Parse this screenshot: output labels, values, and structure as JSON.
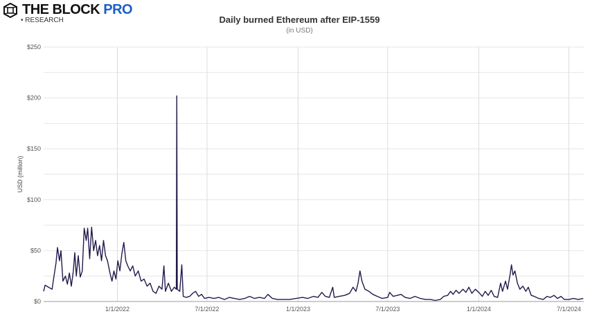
{
  "brand": {
    "name_main": "THE BLOCK",
    "name_accent": "PRO",
    "sub": "• RESEARCH",
    "accent_color": "#1a5fc8"
  },
  "chart_data": {
    "type": "line",
    "title": "Daily burned Ethereum after EIP-1559",
    "subtitle": "(in USD)",
    "xlabel": "",
    "ylabel": "USD (million)",
    "xlim": [
      "2021-08-05",
      "2024-07-31"
    ],
    "ylim": [
      0,
      250
    ],
    "y_ticks": [
      0,
      50,
      100,
      150,
      200,
      250
    ],
    "y_tick_labels": [
      "$0",
      "$50",
      "$100",
      "$150",
      "$200",
      "$250"
    ],
    "x_ticks": [
      "2022-01-01",
      "2022-07-01",
      "2023-01-01",
      "2023-07-01",
      "2024-01-01",
      "2024-07-01"
    ],
    "x_tick_labels": [
      "1/1/2022",
      "7/1/2022",
      "1/1/2023",
      "7/1/2023",
      "1/1/2024",
      "7/1/2024"
    ],
    "grid": true,
    "line_color": "#1f1a4a",
    "series": [
      {
        "points": [
          [
            "2021-08-05",
            10
          ],
          [
            "2021-08-08",
            16
          ],
          [
            "2021-08-15",
            14
          ],
          [
            "2021-08-22",
            12
          ],
          [
            "2021-08-26",
            25
          ],
          [
            "2021-08-30",
            38
          ],
          [
            "2021-09-02",
            53
          ],
          [
            "2021-09-06",
            40
          ],
          [
            "2021-09-09",
            50
          ],
          [
            "2021-09-13",
            20
          ],
          [
            "2021-09-18",
            25
          ],
          [
            "2021-09-22",
            17
          ],
          [
            "2021-09-26",
            28
          ],
          [
            "2021-09-30",
            15
          ],
          [
            "2021-10-04",
            30
          ],
          [
            "2021-10-07",
            48
          ],
          [
            "2021-10-10",
            25
          ],
          [
            "2021-10-14",
            45
          ],
          [
            "2021-10-18",
            24
          ],
          [
            "2021-10-22",
            30
          ],
          [
            "2021-10-26",
            72
          ],
          [
            "2021-10-30",
            60
          ],
          [
            "2021-11-02",
            72
          ],
          [
            "2021-11-06",
            42
          ],
          [
            "2021-11-10",
            73
          ],
          [
            "2021-11-14",
            50
          ],
          [
            "2021-11-18",
            60
          ],
          [
            "2021-11-22",
            45
          ],
          [
            "2021-11-26",
            55
          ],
          [
            "2021-11-30",
            40
          ],
          [
            "2021-12-04",
            60
          ],
          [
            "2021-12-08",
            45
          ],
          [
            "2021-12-12",
            40
          ],
          [
            "2021-12-17",
            28
          ],
          [
            "2021-12-21",
            20
          ],
          [
            "2021-12-25",
            30
          ],
          [
            "2021-12-29",
            22
          ],
          [
            "2022-01-02",
            40
          ],
          [
            "2022-01-06",
            30
          ],
          [
            "2022-01-10",
            47
          ],
          [
            "2022-01-14",
            58
          ],
          [
            "2022-01-18",
            40
          ],
          [
            "2022-01-22",
            35
          ],
          [
            "2022-01-27",
            30
          ],
          [
            "2022-02-01",
            35
          ],
          [
            "2022-02-06",
            25
          ],
          [
            "2022-02-12",
            30
          ],
          [
            "2022-02-18",
            20
          ],
          [
            "2022-02-24",
            22
          ],
          [
            "2022-03-02",
            15
          ],
          [
            "2022-03-08",
            18
          ],
          [
            "2022-03-14",
            10
          ],
          [
            "2022-03-20",
            8
          ],
          [
            "2022-03-26",
            15
          ],
          [
            "2022-04-01",
            12
          ],
          [
            "2022-04-05",
            35
          ],
          [
            "2022-04-08",
            10
          ],
          [
            "2022-04-14",
            18
          ],
          [
            "2022-04-20",
            10
          ],
          [
            "2022-04-26",
            14
          ],
          [
            "2022-04-30",
            12
          ],
          [
            "2022-05-01",
            202
          ],
          [
            "2022-05-02",
            12
          ],
          [
            "2022-05-07",
            10
          ],
          [
            "2022-05-11",
            36
          ],
          [
            "2022-05-14",
            5
          ],
          [
            "2022-05-20",
            4
          ],
          [
            "2022-05-27",
            5
          ],
          [
            "2022-06-02",
            8
          ],
          [
            "2022-06-08",
            10
          ],
          [
            "2022-06-14",
            5
          ],
          [
            "2022-06-20",
            7
          ],
          [
            "2022-06-26",
            3
          ],
          [
            "2022-07-05",
            4
          ],
          [
            "2022-07-15",
            3
          ],
          [
            "2022-07-25",
            4
          ],
          [
            "2022-08-05",
            2
          ],
          [
            "2022-08-15",
            4
          ],
          [
            "2022-08-25",
            3
          ],
          [
            "2022-09-05",
            2
          ],
          [
            "2022-09-15",
            3
          ],
          [
            "2022-09-25",
            5
          ],
          [
            "2022-10-05",
            3
          ],
          [
            "2022-10-15",
            4
          ],
          [
            "2022-10-25",
            3
          ],
          [
            "2022-11-01",
            7
          ],
          [
            "2022-11-10",
            3
          ],
          [
            "2022-11-20",
            2
          ],
          [
            "2022-12-01",
            2
          ],
          [
            "2022-12-15",
            2
          ],
          [
            "2022-12-28",
            3
          ],
          [
            "2023-01-10",
            4
          ],
          [
            "2023-01-20",
            3
          ],
          [
            "2023-02-01",
            5
          ],
          [
            "2023-02-10",
            4
          ],
          [
            "2023-02-18",
            9
          ],
          [
            "2023-02-25",
            5
          ],
          [
            "2023-03-05",
            4
          ],
          [
            "2023-03-12",
            14
          ],
          [
            "2023-03-15",
            4
          ],
          [
            "2023-03-25",
            5
          ],
          [
            "2023-04-05",
            6
          ],
          [
            "2023-04-15",
            8
          ],
          [
            "2023-04-22",
            14
          ],
          [
            "2023-04-28",
            10
          ],
          [
            "2023-05-02",
            18
          ],
          [
            "2023-05-06",
            30
          ],
          [
            "2023-05-10",
            20
          ],
          [
            "2023-05-16",
            12
          ],
          [
            "2023-05-24",
            10
          ],
          [
            "2023-06-01",
            7
          ],
          [
            "2023-06-10",
            5
          ],
          [
            "2023-06-20",
            3
          ],
          [
            "2023-07-01",
            4
          ],
          [
            "2023-07-05",
            9
          ],
          [
            "2023-07-12",
            5
          ],
          [
            "2023-07-20",
            6
          ],
          [
            "2023-07-28",
            7
          ],
          [
            "2023-08-05",
            4
          ],
          [
            "2023-08-15",
            3
          ],
          [
            "2023-08-25",
            5
          ],
          [
            "2023-09-05",
            3
          ],
          [
            "2023-09-15",
            2
          ],
          [
            "2023-09-25",
            2
          ],
          [
            "2023-10-05",
            1
          ],
          [
            "2023-10-15",
            2
          ],
          [
            "2023-10-22",
            5
          ],
          [
            "2023-10-30",
            6
          ],
          [
            "2023-11-05",
            10
          ],
          [
            "2023-11-10",
            7
          ],
          [
            "2023-11-16",
            11
          ],
          [
            "2023-11-22",
            8
          ],
          [
            "2023-11-30",
            12
          ],
          [
            "2023-12-06",
            9
          ],
          [
            "2023-12-12",
            14
          ],
          [
            "2023-12-18",
            8
          ],
          [
            "2023-12-25",
            12
          ],
          [
            "2024-01-01",
            9
          ],
          [
            "2024-01-08",
            5
          ],
          [
            "2024-01-14",
            10
          ],
          [
            "2024-01-20",
            6
          ],
          [
            "2024-01-26",
            11
          ],
          [
            "2024-02-01",
            5
          ],
          [
            "2024-02-08",
            4
          ],
          [
            "2024-02-14",
            18
          ],
          [
            "2024-02-18",
            10
          ],
          [
            "2024-02-24",
            20
          ],
          [
            "2024-02-28",
            12
          ],
          [
            "2024-03-04",
            26
          ],
          [
            "2024-03-07",
            36
          ],
          [
            "2024-03-10",
            26
          ],
          [
            "2024-03-14",
            30
          ],
          [
            "2024-03-19",
            18
          ],
          [
            "2024-03-24",
            12
          ],
          [
            "2024-03-30",
            15
          ],
          [
            "2024-04-05",
            10
          ],
          [
            "2024-04-10",
            14
          ],
          [
            "2024-04-16",
            6
          ],
          [
            "2024-04-22",
            5
          ],
          [
            "2024-05-01",
            3
          ],
          [
            "2024-05-10",
            2
          ],
          [
            "2024-05-18",
            5
          ],
          [
            "2024-05-24",
            4
          ],
          [
            "2024-06-01",
            6
          ],
          [
            "2024-06-08",
            3
          ],
          [
            "2024-06-15",
            5
          ],
          [
            "2024-06-22",
            2
          ],
          [
            "2024-07-01",
            2
          ],
          [
            "2024-07-10",
            3
          ],
          [
            "2024-07-20",
            2
          ],
          [
            "2024-07-30",
            3
          ]
        ]
      }
    ]
  }
}
